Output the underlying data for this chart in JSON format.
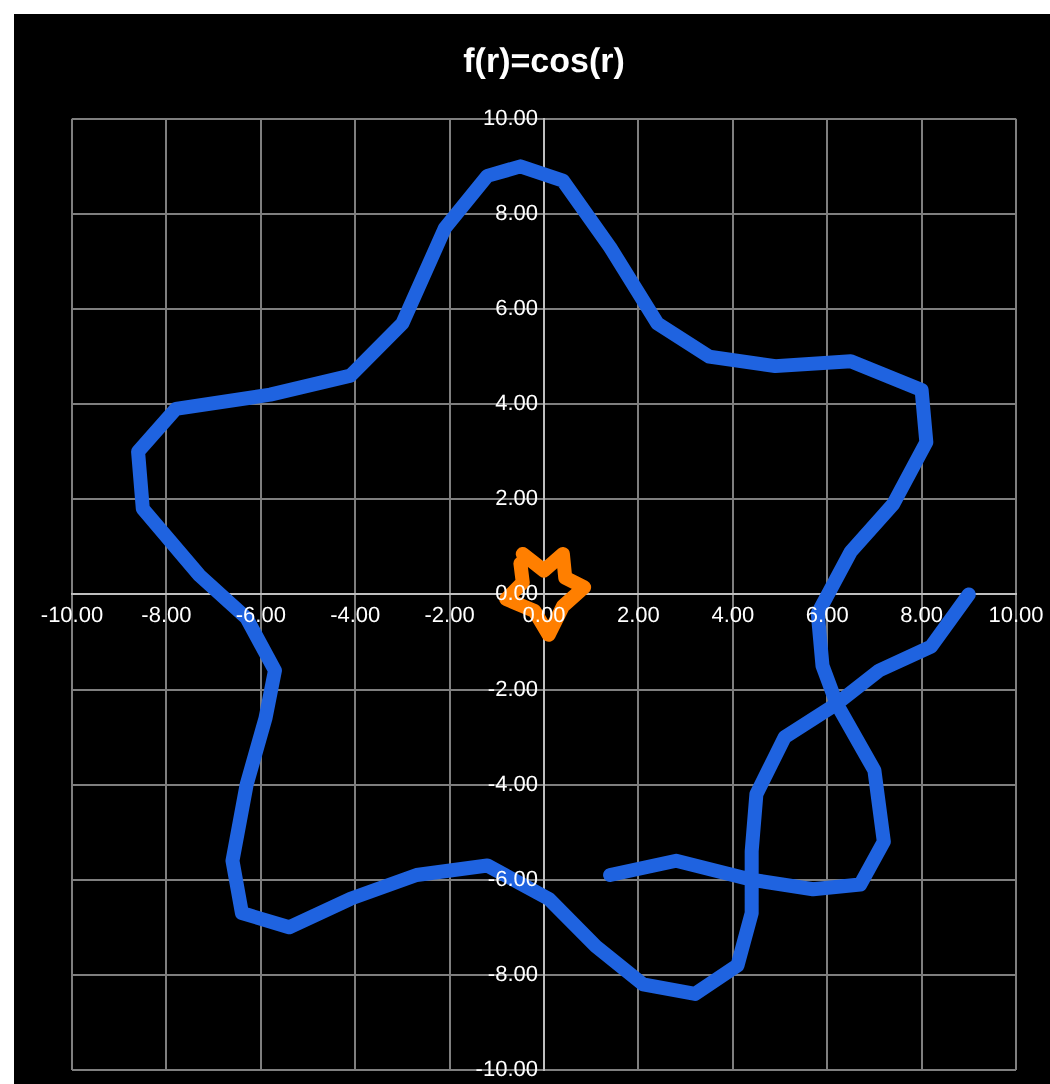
{
  "chart_data": {
    "type": "line",
    "title": "f(r)=cos(r)",
    "xlim": [
      -10,
      10
    ],
    "ylim": [
      -10,
      10
    ],
    "xticks": [
      {
        "value": -10,
        "label": "-10.00"
      },
      {
        "value": -8,
        "label": "-8.00"
      },
      {
        "value": -6,
        "label": "-6.00"
      },
      {
        "value": -4,
        "label": "-4.00"
      },
      {
        "value": -2,
        "label": "-2.00"
      },
      {
        "value": 0,
        "label": "0.00"
      },
      {
        "value": 2,
        "label": "2.00"
      },
      {
        "value": 4,
        "label": "4.00"
      },
      {
        "value": 6,
        "label": "6.00"
      },
      {
        "value": 8,
        "label": "8.00"
      },
      {
        "value": 10,
        "label": "10.00"
      }
    ],
    "yticks": [
      {
        "value": -10,
        "label": "-10.00"
      },
      {
        "value": -8,
        "label": "-8.00"
      },
      {
        "value": -6,
        "label": "-6.00"
      },
      {
        "value": -4,
        "label": "-4.00"
      },
      {
        "value": -2,
        "label": "-2.00"
      },
      {
        "value": 0,
        "label": "0.00"
      },
      {
        "value": 2,
        "label": "2.00"
      },
      {
        "value": 4,
        "label": "4.00"
      },
      {
        "value": 6,
        "label": "6.00"
      },
      {
        "value": 8,
        "label": "8.00"
      },
      {
        "value": 10,
        "label": "10.00"
      }
    ],
    "grid": true,
    "legend": false,
    "marker": "none",
    "line_style": "solid",
    "series": [
      {
        "color": "#1f63e0",
        "x": [
          9.0,
          8.2,
          7.1,
          6.2,
          5.1,
          4.5,
          4.4,
          4.4,
          4.1,
          3.2,
          2.1,
          1.1,
          0.1,
          -1.2,
          -2.7,
          -4.1,
          -5.4,
          -6.4,
          -6.6,
          -6.3,
          -5.9,
          -5.7,
          -6.3,
          -7.3,
          -8.5,
          -8.6,
          -7.8,
          -5.8,
          -4.1,
          -3.0,
          -2.1,
          -1.2,
          -0.5,
          0.4,
          1.4,
          2.4,
          3.5,
          4.9,
          6.5,
          8.0,
          8.1,
          7.4,
          6.5,
          5.8,
          5.9,
          6.2,
          7.0,
          7.2,
          6.7,
          5.7,
          4.4,
          2.8,
          1.4
        ],
        "values": [
          0.0,
          -1.1,
          -1.6,
          -2.3,
          -3.0,
          -4.2,
          -5.4,
          -6.7,
          -7.8,
          -8.4,
          -8.2,
          -7.4,
          -6.4,
          -5.7,
          -5.9,
          -6.4,
          -7.0,
          -6.7,
          -5.6,
          -4.0,
          -2.6,
          -1.6,
          -0.5,
          0.4,
          1.8,
          3.0,
          3.9,
          4.2,
          4.6,
          5.7,
          7.7,
          8.8,
          9.0,
          8.7,
          7.3,
          5.7,
          5.0,
          4.8,
          4.9,
          4.3,
          3.2,
          1.9,
          0.9,
          -0.4,
          -1.5,
          -2.3,
          -3.7,
          -5.2,
          -6.1,
          -6.2,
          -6.0,
          -5.6,
          -5.9
        ]
      },
      {
        "color": "#ff7f00",
        "x": [
          -0.45,
          0.0,
          0.4,
          0.45,
          0.85,
          0.4,
          0.1,
          -0.2,
          -0.8,
          -0.45,
          -0.5
        ],
        "values": [
          0.85,
          0.5,
          0.85,
          0.35,
          0.15,
          -0.25,
          -0.85,
          -0.35,
          -0.1,
          0.25,
          0.65
        ]
      }
    ]
  }
}
